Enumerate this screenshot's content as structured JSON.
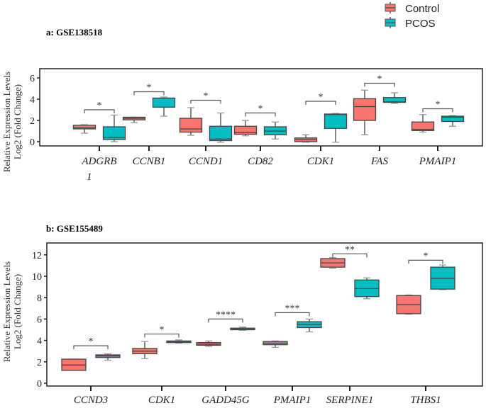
{
  "legend": {
    "items": [
      {
        "label": "Control",
        "color": "#F8766D"
      },
      {
        "label": "PCOS",
        "color": "#00BFC4"
      }
    ],
    "placement": "top-right"
  },
  "chart_data": [
    {
      "type": "box",
      "title": "a: GSE138518",
      "ylabel_line1": "Relative Expression Levels",
      "ylabel_line2": "Log2 (Fold Change)",
      "ylim": [
        -0.5,
        6.5
      ],
      "yticks": [
        0,
        2,
        4,
        6
      ],
      "categories": [
        "ADGRB1",
        "CCNB1",
        "CCND1",
        "CD82",
        "CDK1",
        "FAS",
        "PMAIP1"
      ],
      "category_display": [
        [
          "ADGRB",
          "1"
        ],
        [
          "CCNB1"
        ],
        [
          "CCND1"
        ],
        [
          "CD82"
        ],
        [
          "CDK1"
        ],
        [
          "FAS"
        ],
        [
          "PMAIP1"
        ]
      ],
      "series": [
        {
          "name": "Control",
          "boxes": [
            [
              0.8,
              1.2,
              1.3,
              1.55,
              1.6
            ],
            [
              1.8,
              2.05,
              2.2,
              2.3,
              2.3
            ],
            [
              0.6,
              0.9,
              1.2,
              2.2,
              3.2
            ],
            [
              0.55,
              0.7,
              0.85,
              1.45,
              2.0
            ],
            [
              -0.05,
              0,
              0.2,
              0.35,
              0.65
            ],
            [
              0.65,
              2.0,
              3.3,
              4.05,
              4.85
            ],
            [
              0.9,
              1.05,
              1.15,
              1.85,
              2.55
            ]
          ]
        },
        {
          "name": "PCOS",
          "boxes": [
            [
              0,
              0.2,
              0.4,
              1.4,
              2.5
            ],
            [
              2.4,
              3.25,
              4.1,
              4.1,
              4.2
            ],
            [
              -0.05,
              0.1,
              0.25,
              1.45,
              2.7
            ],
            [
              0.25,
              0.65,
              1.0,
              1.4,
              1.85
            ],
            [
              -0.05,
              1.25,
              2.55,
              2.6,
              2.65
            ],
            [
              3.6,
              3.7,
              3.75,
              4.15,
              4.6
            ],
            [
              1.45,
              1.9,
              2.3,
              2.4,
              2.45
            ]
          ]
        }
      ],
      "significance": [
        {
          "y": 3.0,
          "label": "*"
        },
        {
          "y": 4.7,
          "label": "*"
        },
        {
          "y": 3.9,
          "label": "*"
        },
        {
          "y": 2.7,
          "label": "*"
        },
        {
          "y": 3.8,
          "label": "*"
        },
        {
          "y": 5.5,
          "label": "*"
        },
        {
          "y": 3.1,
          "label": "*"
        }
      ]
    },
    {
      "type": "box",
      "title": "b: GSE155489",
      "ylabel_line1": "Relative Expression Levels",
      "ylabel_line2": "Log2 (Fold Change)",
      "ylim": [
        -0.4,
        13
      ],
      "yticks": [
        0,
        2,
        4,
        6,
        8,
        10,
        12
      ],
      "categories": [
        "CCND3",
        "CDK1",
        "GADD45G",
        "PMAIP1",
        "SERPINE1",
        "THBS1"
      ],
      "category_display": [
        [
          "CCND3"
        ],
        [
          "CDK1"
        ],
        [
          "GADD45G"
        ],
        [
          "PMAIP1"
        ],
        [
          "SERPINE1"
        ],
        [
          "THBS1"
        ]
      ],
      "series": [
        {
          "name": "Control",
          "boxes": [
            [
              1.2,
              1.2,
              1.7,
              2.25,
              2.25
            ],
            [
              2.3,
              2.75,
              3.0,
              3.25,
              3.9
            ],
            [
              3.45,
              3.55,
              3.65,
              3.8,
              3.95
            ],
            [
              3.35,
              3.6,
              3.75,
              3.9,
              3.95
            ],
            [
              10.75,
              10.85,
              11.25,
              11.65,
              11.75
            ],
            [
              6.45,
              6.5,
              7.35,
              8.2,
              8.25
            ]
          ]
        },
        {
          "name": "PCOS",
          "boxes": [
            [
              2.15,
              2.4,
              2.55,
              2.65,
              2.75
            ],
            [
              3.75,
              3.8,
              3.85,
              3.95,
              4.05
            ],
            [
              4.95,
              5.0,
              5.05,
              5.15,
              5.25
            ],
            [
              4.8,
              5.2,
              5.5,
              5.75,
              6.0
            ],
            [
              7.9,
              8.1,
              8.85,
              9.65,
              9.85
            ],
            [
              8.75,
              8.8,
              9.8,
              10.85,
              11.05
            ]
          ]
        }
      ],
      "significance": [
        {
          "y": 3.5,
          "label": "*"
        },
        {
          "y": 4.6,
          "label": "*"
        },
        {
          "y": 6.0,
          "label": "****"
        },
        {
          "y": 6.6,
          "label": "***"
        },
        {
          "y": 12.1,
          "label": "**"
        },
        {
          "y": 11.5,
          "label": "*"
        }
      ]
    }
  ]
}
